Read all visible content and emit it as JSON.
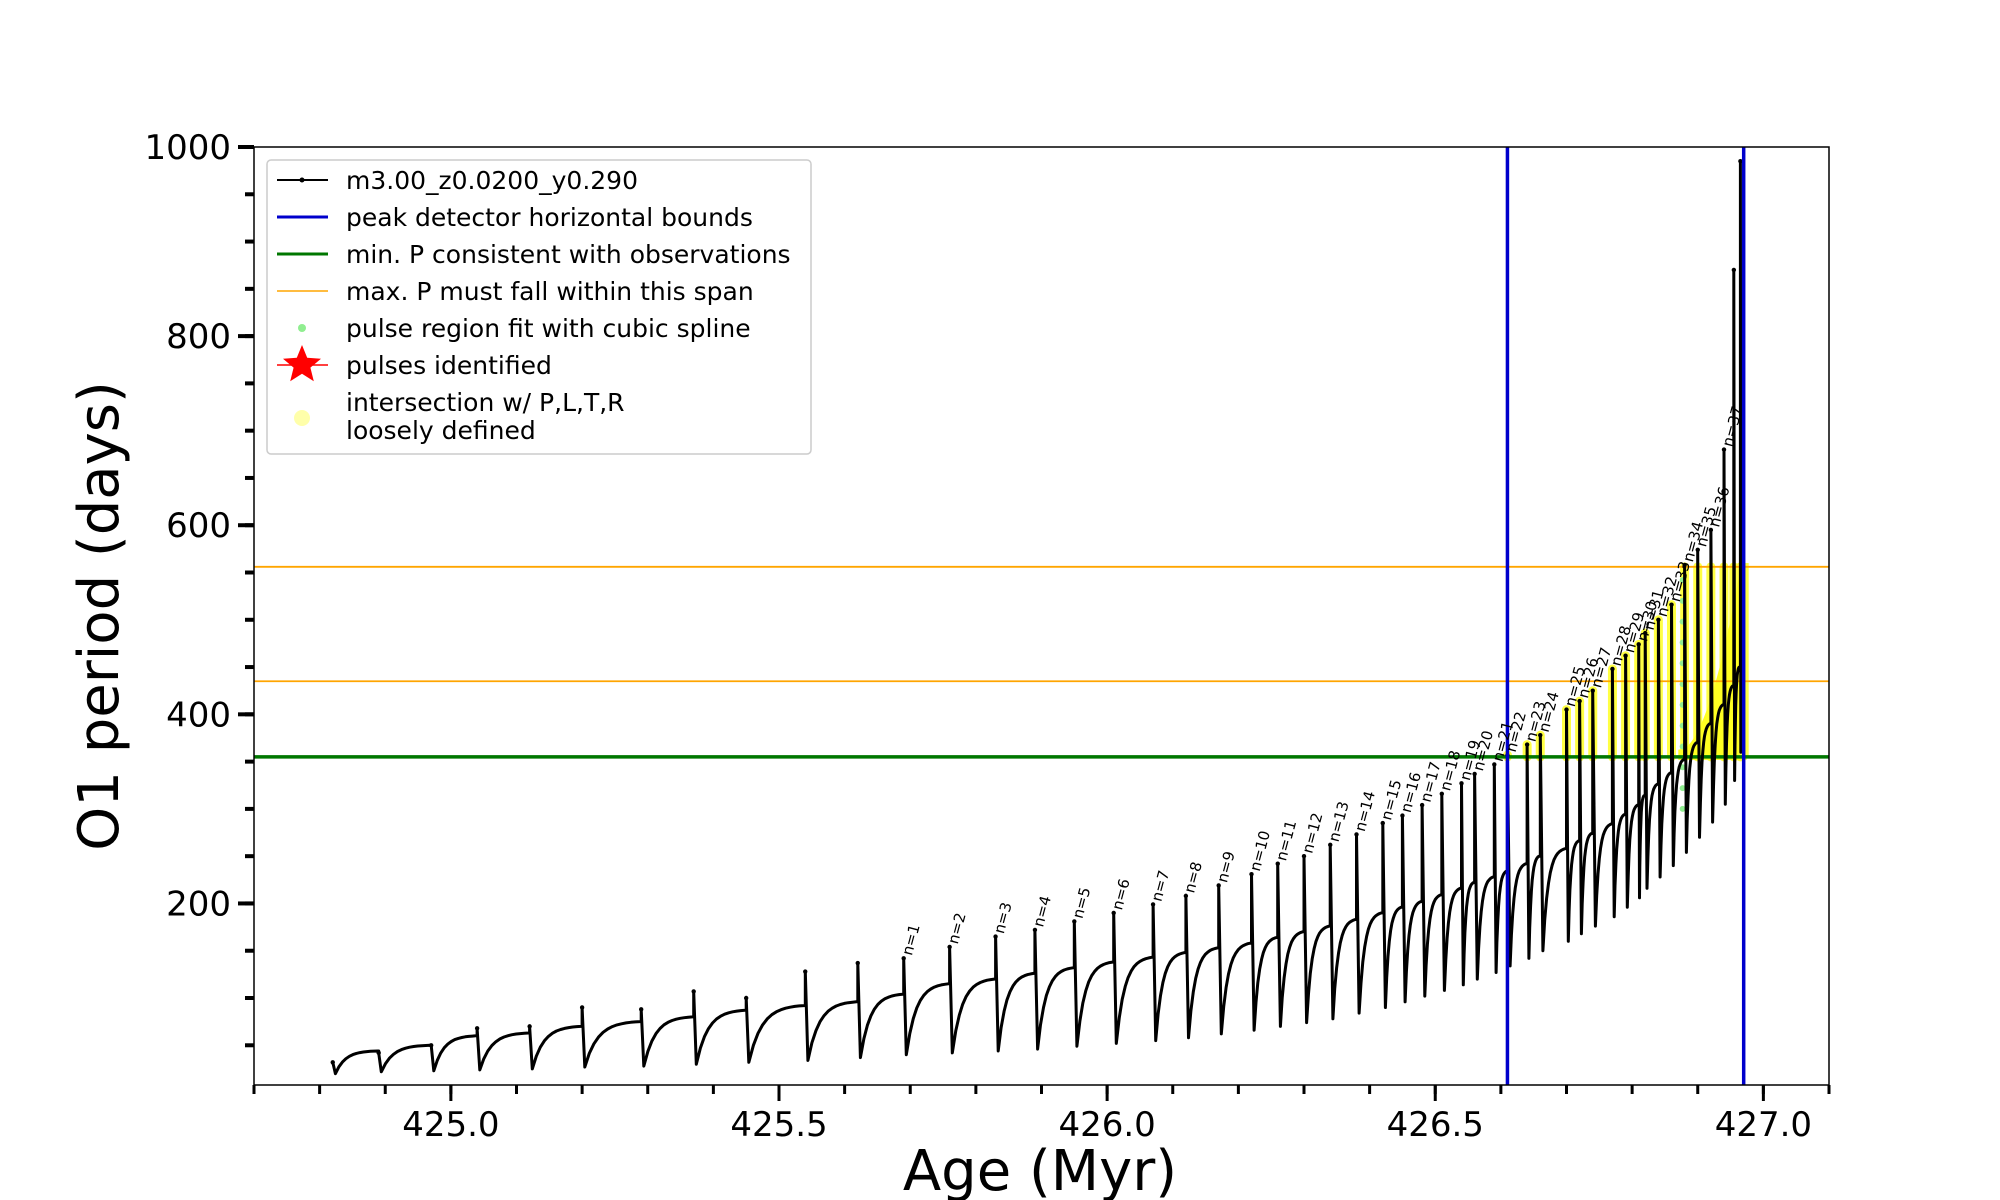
{
  "chart_data": {
    "type": "line",
    "xlabel": "Age (Myr)",
    "ylabel": "O1 period (days)",
    "xlim": [
      424.7,
      427.1
    ],
    "ylim": [
      8,
      1000
    ],
    "x_ticks": [
      425.0,
      425.5,
      426.0,
      426.5,
      427.0
    ],
    "x_tick_labels": [
      "425.0",
      "425.5",
      "426.0",
      "426.5",
      "427.0"
    ],
    "y_ticks": [
      200,
      400,
      600,
      800,
      1000
    ],
    "y_tick_labels": [
      "200",
      "400",
      "600",
      "800",
      "1000"
    ],
    "grid": false,
    "legend_position": "upper-left",
    "legend": [
      {
        "label": "m3.00_z0.0200_y0.290",
        "color": "#000000",
        "kind": "line-marker"
      },
      {
        "label": "peak detector horizontal bounds",
        "color": "#0000cc",
        "kind": "line"
      },
      {
        "label": "min. P consistent with observations",
        "color": "#007700",
        "kind": "line"
      },
      {
        "label": "max. P must fall within this span",
        "color": "#ffa500",
        "kind": "thin-line"
      },
      {
        "label": "pulse region fit with cubic spline",
        "color": "#90ee90",
        "kind": "dot"
      },
      {
        "label": "pulses identified",
        "color": "#ff0000",
        "kind": "star"
      },
      {
        "label": "intersection w/ P,L,T,R",
        "label_line2": "loosely defined",
        "color": "#ffffaa",
        "kind": "dot"
      }
    ],
    "reference_lines": {
      "vertical_blue": [
        426.61,
        426.97
      ],
      "horizontal_green": 355,
      "horizontal_orange": [
        435,
        556
      ]
    },
    "series": [
      {
        "name": "m3.00_z0.0200_y0.290",
        "color": "#000000",
        "pulses": [
          {
            "t": 424.82,
            "peak": 32,
            "trough": 20,
            "level": 30
          },
          {
            "t": 424.89,
            "peak": 42,
            "trough": 22,
            "level": 44
          },
          {
            "t": 424.97,
            "peak": 50,
            "trough": 23,
            "level": 50
          },
          {
            "t": 425.04,
            "peak": 68,
            "trough": 24,
            "level": 60
          },
          {
            "t": 425.12,
            "peak": 70,
            "trough": 25,
            "level": 63
          },
          {
            "t": 425.2,
            "peak": 90,
            "trough": 27,
            "level": 70
          },
          {
            "t": 425.29,
            "peak": 88,
            "trough": 28,
            "level": 75
          },
          {
            "t": 425.37,
            "peak": 107,
            "trough": 30,
            "level": 80
          },
          {
            "t": 425.45,
            "peak": 100,
            "trough": 32,
            "level": 87
          },
          {
            "t": 425.54,
            "peak": 128,
            "trough": 34,
            "level": 92
          },
          {
            "t": 425.62,
            "peak": 137,
            "trough": 37,
            "level": 96
          },
          {
            "t": 425.69,
            "peak": 142,
            "trough": 40,
            "level": 104,
            "label": "n=1"
          },
          {
            "t": 425.76,
            "peak": 154,
            "trough": 42,
            "level": 115,
            "label": "n=2"
          },
          {
            "t": 425.83,
            "peak": 165,
            "trough": 44,
            "level": 120,
            "label": "n=3"
          },
          {
            "t": 425.89,
            "peak": 172,
            "trough": 46,
            "level": 126,
            "label": "n=4"
          },
          {
            "t": 425.95,
            "peak": 181,
            "trough": 49,
            "level": 132,
            "label": "n=5"
          },
          {
            "t": 426.01,
            "peak": 190,
            "trough": 52,
            "level": 138,
            "label": "n=6"
          },
          {
            "t": 426.07,
            "peak": 199,
            "trough": 55,
            "level": 143,
            "label": "n=7"
          },
          {
            "t": 426.12,
            "peak": 208,
            "trough": 58,
            "level": 148,
            "label": "n=8"
          },
          {
            "t": 426.17,
            "peak": 219,
            "trough": 62,
            "level": 153,
            "label": "n=9"
          },
          {
            "t": 426.22,
            "peak": 231,
            "trough": 66,
            "level": 158,
            "label": "n=10"
          },
          {
            "t": 426.26,
            "peak": 242,
            "trough": 70,
            "level": 164,
            "label": "n=11"
          },
          {
            "t": 426.3,
            "peak": 250,
            "trough": 74,
            "level": 170,
            "label": "n=12"
          },
          {
            "t": 426.34,
            "peak": 262,
            "trough": 78,
            "level": 176,
            "label": "n=13"
          },
          {
            "t": 426.38,
            "peak": 273,
            "trough": 84,
            "level": 183,
            "label": "n=14"
          },
          {
            "t": 426.42,
            "peak": 285,
            "trough": 90,
            "level": 190,
            "label": "n=15"
          },
          {
            "t": 426.45,
            "peak": 293,
            "trough": 96,
            "level": 196,
            "label": "n=16"
          },
          {
            "t": 426.48,
            "peak": 304,
            "trough": 102,
            "level": 202,
            "label": "n=17"
          },
          {
            "t": 426.51,
            "peak": 316,
            "trough": 108,
            "level": 209,
            "label": "n=18"
          },
          {
            "t": 426.54,
            "peak": 327,
            "trough": 114,
            "level": 216,
            "label": "n=19"
          },
          {
            "t": 426.56,
            "peak": 337,
            "trough": 120,
            "level": 222,
            "label": "n=20"
          },
          {
            "t": 426.59,
            "peak": 347,
            "trough": 127,
            "level": 228,
            "label": "n=21"
          },
          {
            "t": 426.61,
            "peak": 357,
            "trough": 134,
            "level": 234,
            "label": "n=22"
          },
          {
            "t": 426.64,
            "peak": 368,
            "trough": 142,
            "level": 242,
            "label": "n=23"
          },
          {
            "t": 426.66,
            "peak": 378,
            "trough": 150,
            "level": 250,
            "label": "n=24"
          },
          {
            "t": 426.7,
            "peak": 405,
            "trough": 160,
            "level": 258,
            "label": "n=25"
          },
          {
            "t": 426.72,
            "peak": 414,
            "trough": 168,
            "level": 266,
            "label": "n=26"
          },
          {
            "t": 426.74,
            "peak": 425,
            "trough": 176,
            "level": 274,
            "label": "n=27"
          },
          {
            "t": 426.77,
            "peak": 448,
            "trough": 186,
            "level": 284,
            "label": "n=28"
          },
          {
            "t": 426.79,
            "peak": 462,
            "trough": 196,
            "level": 294,
            "label": "n=29"
          },
          {
            "t": 426.81,
            "peak": 474,
            "trough": 206,
            "level": 304,
            "label": "n=30"
          },
          {
            "t": 426.82,
            "peak": 486,
            "trough": 216,
            "level": 314,
            "label": "n=31"
          },
          {
            "t": 426.84,
            "peak": 500,
            "trough": 228,
            "level": 326,
            "label": "n=32"
          },
          {
            "t": 426.86,
            "peak": 516,
            "trough": 240,
            "level": 338,
            "label": "n=33"
          },
          {
            "t": 426.88,
            "peak": 558,
            "trough": 254,
            "level": 352,
            "label": "n=34"
          },
          {
            "t": 426.9,
            "peak": 574,
            "trough": 270,
            "level": 370,
            "label": "n=35"
          },
          {
            "t": 426.92,
            "peak": 595,
            "trough": 286,
            "level": 390,
            "label": "n=36"
          },
          {
            "t": 426.94,
            "peak": 680,
            "trough": 305,
            "level": 410,
            "label": "n=37"
          },
          {
            "t": 426.955,
            "peak": 870,
            "trough": 330,
            "level": 430
          },
          {
            "t": 426.965,
            "peak": 985,
            "trough": 360,
            "level": 450
          }
        ]
      }
    ]
  }
}
